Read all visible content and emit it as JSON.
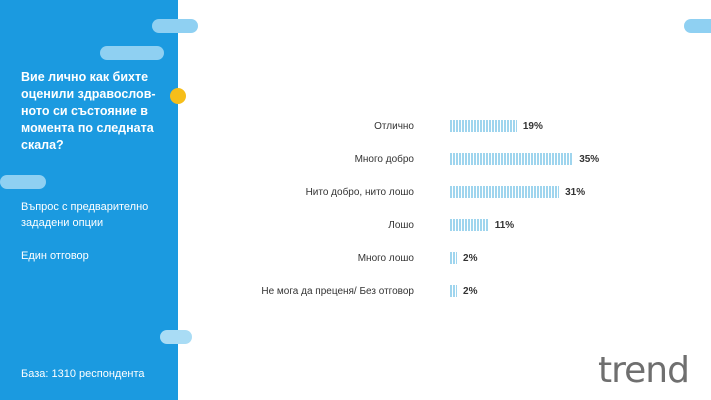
{
  "sidebar": {
    "question": "Вие лично как бихте оценили здравослов-ното си състояние в момента по следната скала?",
    "type": "Въпрос с предварително зададени опции",
    "answer": "Един отговор",
    "base": "База:  1310 респондента"
  },
  "logo": "trend",
  "colors": {
    "sidebar": "#1b9ae0",
    "bar": "#9fd5ee",
    "accent": "#f6be1a"
  },
  "chart_data": {
    "type": "bar",
    "orientation": "horizontal",
    "categories": [
      "Отлично",
      "Много добро",
      "Нито добро, нито лошо",
      "Лошо",
      "Много лошо",
      "Не мога да преценя/ Без отговор"
    ],
    "values": [
      19,
      35,
      31,
      11,
      2,
      2
    ],
    "labels": [
      "19%",
      "35%",
      "31%",
      "11%",
      "2%",
      "2%"
    ]
  }
}
